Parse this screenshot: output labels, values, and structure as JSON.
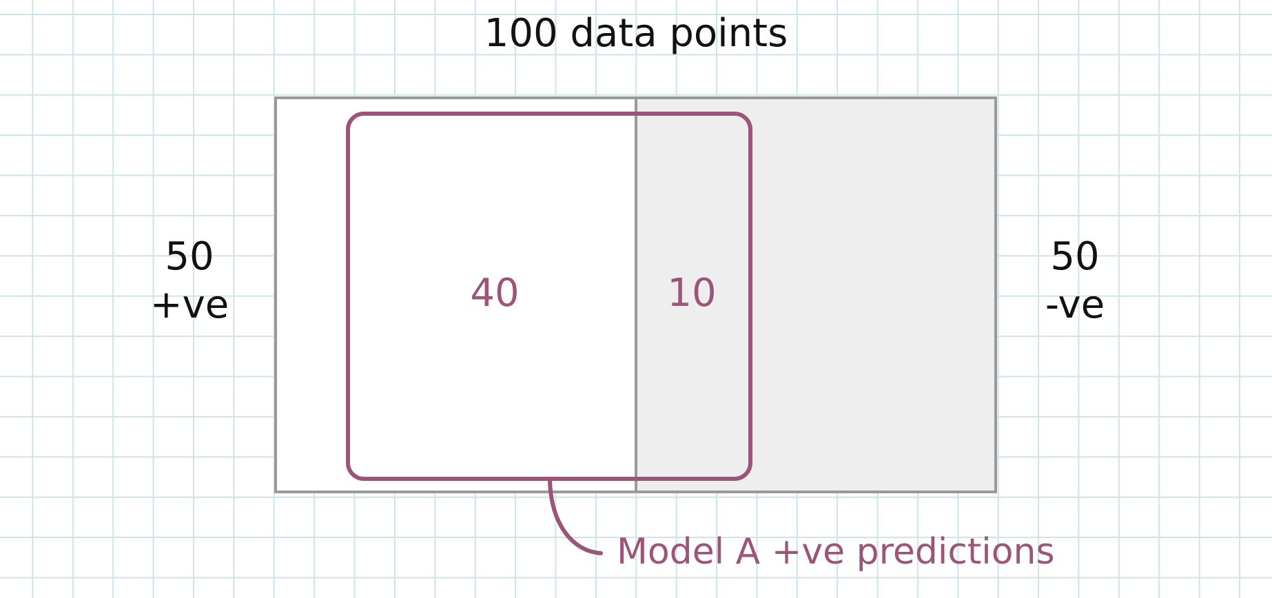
{
  "title": "100 data points",
  "positive_class": {
    "count": "50",
    "label": "+ve"
  },
  "negative_class": {
    "count": "50",
    "label": "-ve"
  },
  "prediction_region": {
    "true_positive_count": "40",
    "false_positive_count": "10",
    "caption": "Model A +ve predictions"
  },
  "colors": {
    "accent": "#9c5479",
    "outline": "#999999",
    "negative_fill": "#eeeeee",
    "grid": "#cfe3ec"
  }
}
